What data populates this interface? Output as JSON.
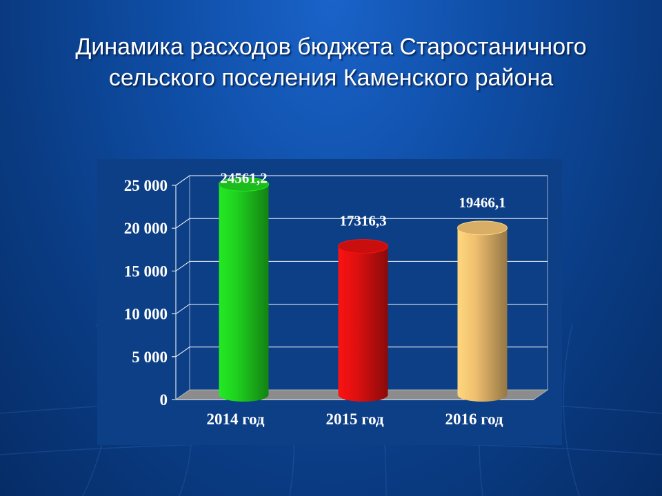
{
  "slide": {
    "title_line1": "Динамика расходов бюджета Староcтаничного",
    "title_line2": "сельского поселения Каменского района"
  },
  "colors": {
    "background": "#0f4ea6",
    "panel": "#0d3f86",
    "floor": "#8c8c8c"
  },
  "chart_data": {
    "type": "bar",
    "style": "3d-cylinder",
    "categories": [
      "2014 год",
      "2015 год",
      "2016 год"
    ],
    "values": [
      24561.2,
      17316.3,
      19466.1
    ],
    "data_labels": [
      "24561,2",
      "17316,3",
      "19466,1"
    ],
    "bar_colors": [
      "#1fd11f",
      "#e01010",
      "#f0c070"
    ],
    "ylim": [
      0,
      25000
    ],
    "yticks": [
      0,
      5000,
      10000,
      15000,
      20000,
      25000
    ],
    "ytick_labels": [
      "0",
      "5 000",
      "10 000",
      "15 000",
      "20 000",
      "25 000"
    ],
    "grid": true,
    "legend": false
  }
}
